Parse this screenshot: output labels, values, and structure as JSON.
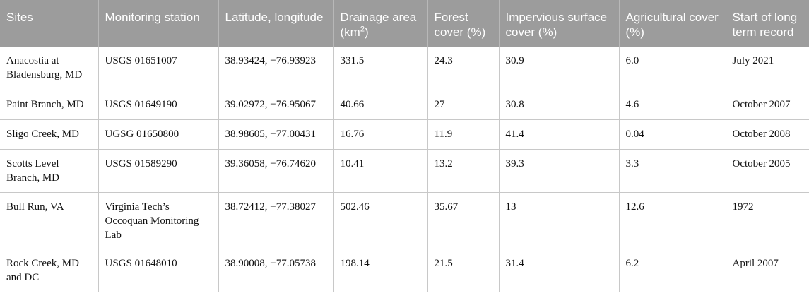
{
  "table": {
    "headers": [
      {
        "pre": "Sites",
        "sup": "",
        "post": ""
      },
      {
        "pre": "Monitoring station",
        "sup": "",
        "post": ""
      },
      {
        "pre": "Latitude, longitude",
        "sup": "",
        "post": ""
      },
      {
        "pre": "Drainage area (km",
        "sup": "2",
        "post": ")"
      },
      {
        "pre": "Forest cover (%)",
        "sup": "",
        "post": ""
      },
      {
        "pre": "Impervious surface cover (%)",
        "sup": "",
        "post": ""
      },
      {
        "pre": "Agricultural cover (%)",
        "sup": "",
        "post": ""
      },
      {
        "pre": "Start of long term record",
        "sup": "",
        "post": ""
      }
    ],
    "rows": [
      [
        "Anacostia at Bladensburg, MD",
        "USGS 01651007",
        "38.93424, −76.93923",
        "331.5",
        "24.3",
        "30.9",
        "6.0",
        "July 2021"
      ],
      [
        "Paint Branch, MD",
        "USGS 01649190",
        "39.02972, −76.95067",
        "40.66",
        "27",
        "30.8",
        "4.6",
        "October 2007"
      ],
      [
        "Sligo Creek, MD",
        "UGSG 01650800",
        "38.98605, −77.00431",
        "16.76",
        "11.9",
        "41.4",
        "0.04",
        "October 2008"
      ],
      [
        "Scotts Level Branch, MD",
        "USGS 01589290",
        "39.36058, −76.74620",
        "10.41",
        "13.2",
        "39.3",
        "3.3",
        "October 2005"
      ],
      [
        "Bull Run, VA",
        "Virginia Tech’s Occoquan Monitoring Lab",
        "38.72412, −77.38027",
        "502.46",
        "35.67",
        "13",
        "12.6",
        "1972"
      ],
      [
        "Rock Creek, MD and DC",
        "USGS 01648010",
        "38.90008, −77.05738",
        "198.14",
        "21.5",
        "31.4",
        "6.2",
        "April 2007"
      ]
    ]
  }
}
